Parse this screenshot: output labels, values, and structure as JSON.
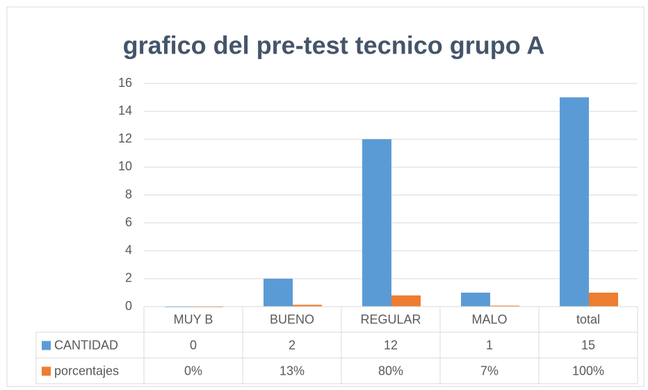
{
  "chart_data": {
    "type": "bar",
    "title": "grafico del pre-test tecnico grupo A",
    "categories": [
      "MUY B",
      "BUENO",
      "REGULAR",
      "MALO",
      "total"
    ],
    "series": [
      {
        "name": "CANTIDAD",
        "color": "#5b9bd5",
        "values": [
          0,
          2,
          12,
          1,
          15
        ]
      },
      {
        "name": "porcentajes",
        "color": "#ed7d31",
        "values": [
          0,
          0.13,
          0.8,
          0.07,
          1
        ],
        "value_labels": [
          "0%",
          "13%",
          "80%",
          "7%",
          "100%"
        ]
      }
    ],
    "ylim": [
      0,
      16
    ],
    "yticks": [
      0,
      2,
      4,
      6,
      8,
      10,
      12,
      14,
      16
    ],
    "grid": true,
    "data_table": true
  }
}
